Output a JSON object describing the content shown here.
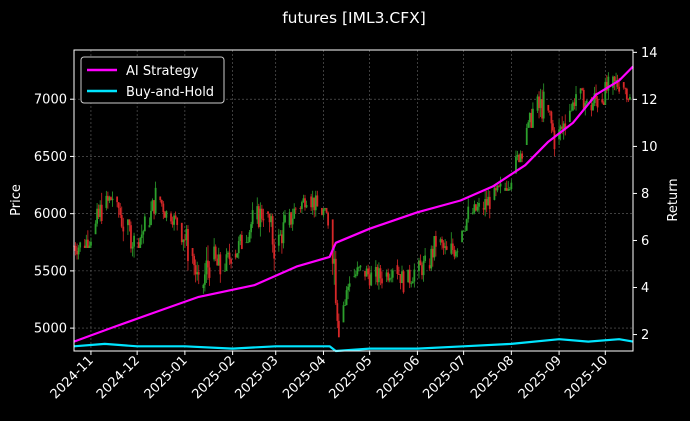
{
  "chart_data": {
    "type": "line",
    "title": "futures [IML3.CFX]",
    "xlabel": "",
    "ylabel_left": "Price",
    "ylabel_right": "Return",
    "x_tick_labels": [
      "2024-11",
      "2024-12",
      "2025-01",
      "2025-02",
      "2025-03",
      "2025-04",
      "2025-05",
      "2025-06",
      "2025-07",
      "2025-08",
      "2025-09",
      "2025-10"
    ],
    "x_range": [
      "2024-10-21",
      "2025-10-19"
    ],
    "ylim_left": [
      4800,
      7430
    ],
    "ylim_right": [
      1.3,
      14.1
    ],
    "yticks_left": [
      5000,
      5500,
      6000,
      6500,
      7000
    ],
    "yticks_right": [
      2,
      4,
      6,
      8,
      10,
      12,
      14
    ],
    "grid": true,
    "legend_position": "top-left",
    "colors": {
      "up": "#2ca02c",
      "down": "#d62728",
      "ai_strategy": "#ff00ff",
      "buy_and_hold": "#00e5ff",
      "background": "#000000",
      "grid": "#666666",
      "text": "#ffffff"
    },
    "price_series": {
      "name": "Price",
      "style": "candlestick (OHLC ranges)",
      "dates": [
        "2024-10-21",
        "2024-10-28",
        "2024-11-04",
        "2024-11-11",
        "2024-11-18",
        "2024-11-25",
        "2024-12-02",
        "2024-12-09",
        "2024-12-16",
        "2024-12-23",
        "2024-12-30",
        "2025-01-06",
        "2025-01-13",
        "2025-01-20",
        "2025-01-27",
        "2025-02-03",
        "2025-02-10",
        "2025-02-17",
        "2025-02-24",
        "2025-03-03",
        "2025-03-10",
        "2025-03-17",
        "2025-03-24",
        "2025-03-31",
        "2025-04-07",
        "2025-04-14",
        "2025-04-21",
        "2025-04-28",
        "2025-05-05",
        "2025-05-12",
        "2025-05-19",
        "2025-05-26",
        "2025-06-02",
        "2025-06-09",
        "2025-06-16",
        "2025-06-23",
        "2025-06-30",
        "2025-07-07",
        "2025-07-14",
        "2025-07-21",
        "2025-07-28",
        "2025-08-04",
        "2025-08-11",
        "2025-08-18",
        "2025-08-25",
        "2025-09-01",
        "2025-09-08",
        "2025-09-15",
        "2025-09-22",
        "2025-09-29",
        "2025-10-06",
        "2025-10-13"
      ],
      "close": [
        5720,
        5820,
        6050,
        6150,
        5900,
        5750,
        5880,
        6150,
        6000,
        5920,
        5700,
        5350,
        5600,
        5500,
        5650,
        5750,
        5950,
        6020,
        5720,
        5900,
        6050,
        6150,
        6050,
        5950,
        5050,
        5450,
        5500,
        5450,
        5450,
        5550,
        5400,
        5500,
        5550,
        5750,
        5650,
        5750,
        6000,
        6050,
        6120,
        6200,
        6350,
        6600,
        6900,
        6950,
        6650,
        6800,
        7050,
        6950,
        7000,
        7100,
        7150,
        7000
      ],
      "high": [
        5900,
        6050,
        6300,
        6320,
        6100,
        5950,
        6100,
        6280,
        6150,
        6020,
        5900,
        5650,
        5900,
        5800,
        5850,
        5950,
        6100,
        6180,
        6000,
        6050,
        6200,
        6250,
        6200,
        6050,
        5700,
        5600,
        5650,
        5600,
        5600,
        5700,
        5600,
        5650,
        5700,
        5850,
        5800,
        5950,
        6150,
        6200,
        6280,
        6350,
        6550,
        6850,
        7100,
        7250,
        6900,
        7050,
        7200,
        7100,
        7300,
        7280,
        7350,
        7100
      ],
      "low": [
        5600,
        5700,
        5850,
        5950,
        5700,
        5550,
        5700,
        5900,
        5850,
        5800,
        5400,
        5250,
        5300,
        5350,
        5500,
        5600,
        5750,
        5800,
        5500,
        5650,
        5850,
        6000,
        5900,
        5700,
        4920,
        5200,
        5350,
        5300,
        5300,
        5400,
        5300,
        5350,
        5400,
        5500,
        5500,
        5550,
        5850,
        5950,
        5950,
        6050,
        6200,
        6450,
        6750,
        6800,
        6500,
        6600,
        6900,
        6850,
        6850,
        6950,
        7000,
        6900
      ]
    },
    "series": [
      {
        "name": "AI Strategy",
        "dates": [
          "2024-10-21",
          "2024-11-15",
          "2024-12-15",
          "2025-01-10",
          "2025-02-15",
          "2025-03-15",
          "2025-04-05",
          "2025-04-09",
          "2025-05-01",
          "2025-06-01",
          "2025-06-29",
          "2025-07-20",
          "2025-08-10",
          "2025-08-25",
          "2025-09-10",
          "2025-09-25",
          "2025-10-10",
          "2025-10-19"
        ],
        "values": [
          1.7,
          2.3,
          3.0,
          3.6,
          4.1,
          4.9,
          5.3,
          5.9,
          6.5,
          7.2,
          7.7,
          8.3,
          9.2,
          10.2,
          11.0,
          12.2,
          12.8,
          13.4
        ]
      },
      {
        "name": "Buy-and-Hold",
        "dates": [
          "2024-10-21",
          "2024-11-10",
          "2024-12-01",
          "2025-01-01",
          "2025-02-01",
          "2025-03-01",
          "2025-04-05",
          "2025-04-09",
          "2025-05-01",
          "2025-06-01",
          "2025-07-01",
          "2025-08-01",
          "2025-09-01",
          "2025-09-20",
          "2025-10-10",
          "2025-10-19"
        ],
        "values": [
          1.5,
          1.6,
          1.5,
          1.5,
          1.4,
          1.5,
          1.5,
          1.3,
          1.4,
          1.4,
          1.5,
          1.6,
          1.8,
          1.7,
          1.8,
          1.7
        ]
      }
    ]
  }
}
